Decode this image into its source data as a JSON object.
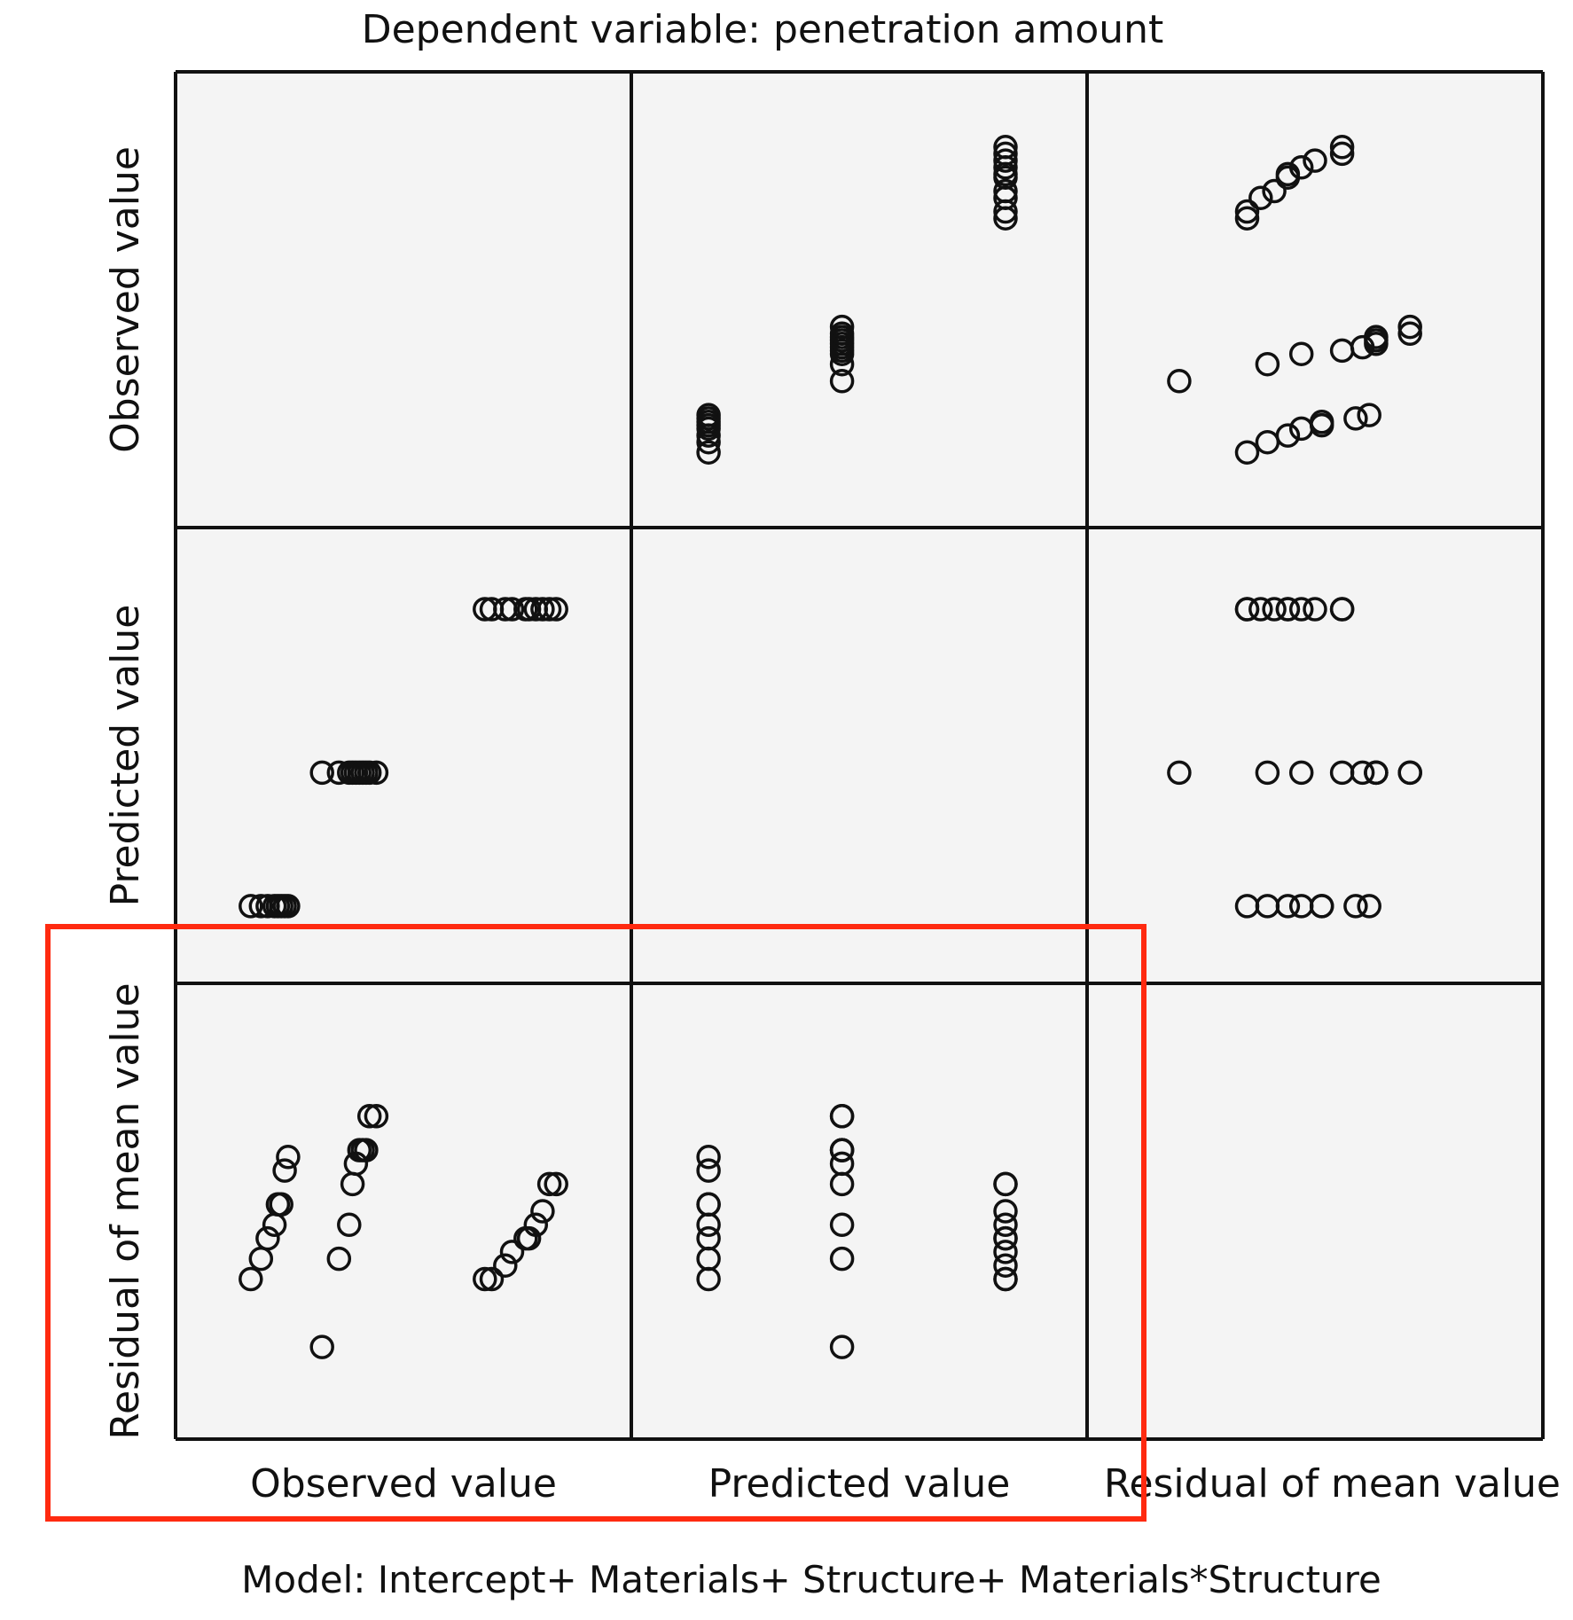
{
  "chart_data": {
    "type": "scatter",
    "title": "Dependent variable: penetration amount",
    "footnote": "Model: Intercept+ Materials+ Structure+ Materials*Structure",
    "variables": [
      "Observed value",
      "Predicted value",
      "Residual of mean value"
    ],
    "ranges": {
      "observed": [
        -0.02,
        1.02
      ],
      "predicted": [
        0.05,
        0.87
      ],
      "residual": [
        -0.22,
        0.3
      ]
    },
    "observed": [
      0.05,
      0.08,
      0.1,
      0.12,
      0.13,
      0.14,
      0.15,
      0.16,
      0.26,
      0.31,
      0.34,
      0.35,
      0.36,
      0.37,
      0.38,
      0.39,
      0.4,
      0.42,
      0.74,
      0.76,
      0.8,
      0.82,
      0.86,
      0.87,
      0.89,
      0.91,
      0.93,
      0.95
    ],
    "predicted": [
      0.11,
      0.11,
      0.11,
      0.11,
      0.11,
      0.11,
      0.11,
      0.11,
      0.42,
      0.42,
      0.42,
      0.42,
      0.42,
      0.42,
      0.42,
      0.42,
      0.42,
      0.42,
      0.8,
      0.8,
      0.8,
      0.8,
      0.8,
      0.8,
      0.8,
      0.8,
      0.8,
      0.8
    ],
    "residual": [
      -0.06,
      -0.03,
      0.0,
      0.02,
      0.05,
      0.05,
      0.1,
      0.12,
      -0.16,
      -0.03,
      0.02,
      0.08,
      0.11,
      0.13,
      0.13,
      0.13,
      0.18,
      0.18,
      -0.06,
      -0.06,
      -0.04,
      -0.02,
      0.0,
      0.0,
      0.02,
      0.04,
      0.08,
      0.08
    ],
    "highlight": {
      "color": "#ff2a10",
      "covers": [
        "Residual of mean value vs Observed value",
        "Residual of mean value vs Predicted value"
      ]
    },
    "grid": false,
    "panel_background": "#f4f4f4"
  }
}
